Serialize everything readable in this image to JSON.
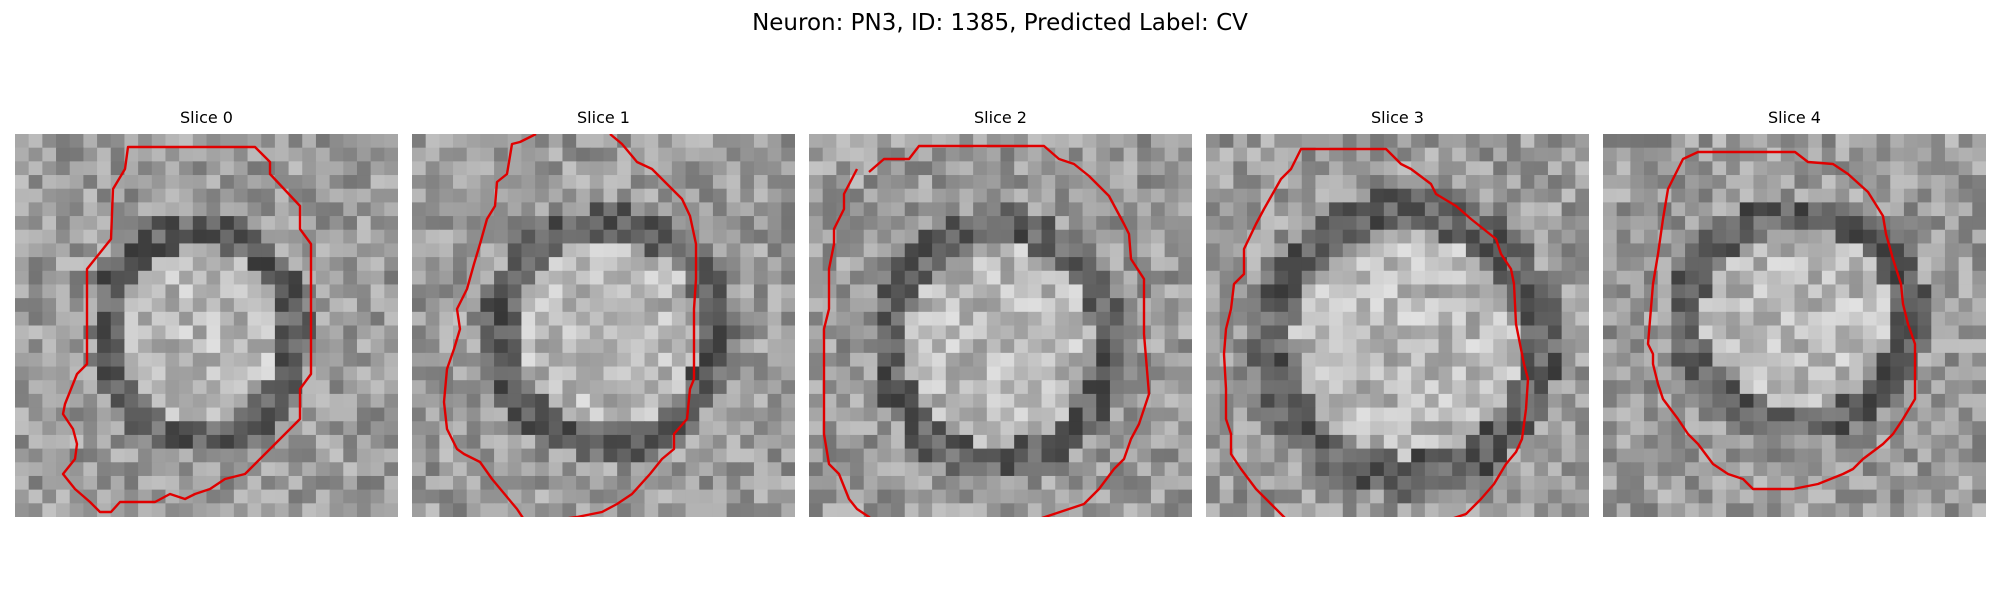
{
  "figure": {
    "title": "Neuron: PN3, ID: 1385, Predicted Label: CV"
  },
  "panels": [
    {
      "title": "Slice 0"
    },
    {
      "title": "Slice 1"
    },
    {
      "title": "Slice 2"
    },
    {
      "title": "Slice 3"
    },
    {
      "title": "Slice 4"
    }
  ],
  "colors": {
    "contour": "#e00000",
    "background": "#ffffff"
  }
}
